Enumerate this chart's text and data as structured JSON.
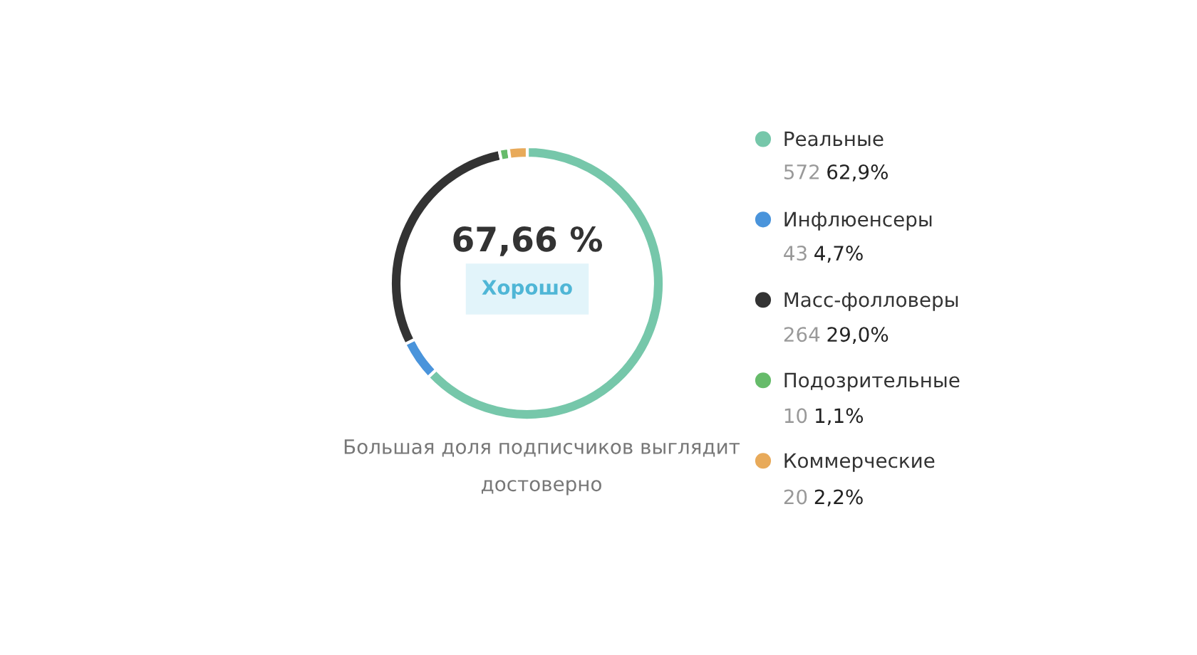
{
  "chart_data": {
    "type": "donut",
    "categories": [
      "Реальные",
      "Инфлюенсеры",
      "Масс-фолловеры",
      "Подозрительные",
      "Коммерческие"
    ],
    "values": [
      572,
      43,
      264,
      10,
      20
    ],
    "colors": [
      "#76c7aa",
      "#4a94db",
      "#333333",
      "#66bb6a",
      "#e8aa5a"
    ],
    "value_labels": [
      "572 62,9%",
      "43 4,7%",
      "264 29,0%",
      "10 1,1%",
      "20 2,2%"
    ],
    "legend": "right",
    "annotations": [
      "67,66 %",
      "Хорошо",
      "Большая доля подписчиков выглядит достоверно"
    ]
  }
}
